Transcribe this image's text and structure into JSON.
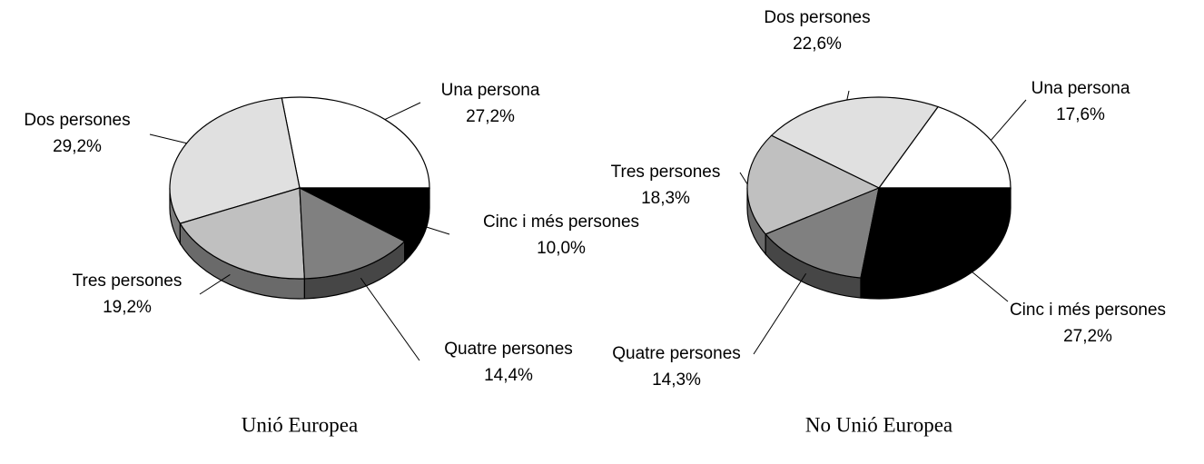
{
  "chart_data": [
    {
      "type": "pie",
      "title": "Unió Europea",
      "categories": [
        "Una persona",
        "Dos persones",
        "Tres persones",
        "Quatre persones",
        "Cinc i més persones"
      ],
      "values": [
        27.2,
        29.2,
        19.2,
        14.4,
        10.0
      ],
      "value_labels": [
        "27,2%",
        "29,2%",
        "19,2%",
        "14,4%",
        "10,0%"
      ],
      "colors": [
        "#ffffff",
        "#e0e0e0",
        "#c0c0c0",
        "#808080",
        "#000000"
      ]
    },
    {
      "type": "pie",
      "title": "No Unió Europea",
      "categories": [
        "Una persona",
        "Dos persones",
        "Tres persones",
        "Quatre persones",
        "Cinc i més persones"
      ],
      "values": [
        17.6,
        22.6,
        18.3,
        14.3,
        27.2
      ],
      "value_labels": [
        "17,6%",
        "22,6%",
        "18,3%",
        "14,3%",
        "27,2%"
      ],
      "colors": [
        "#ffffff",
        "#e0e0e0",
        "#c0c0c0",
        "#808080",
        "#000000"
      ]
    }
  ]
}
